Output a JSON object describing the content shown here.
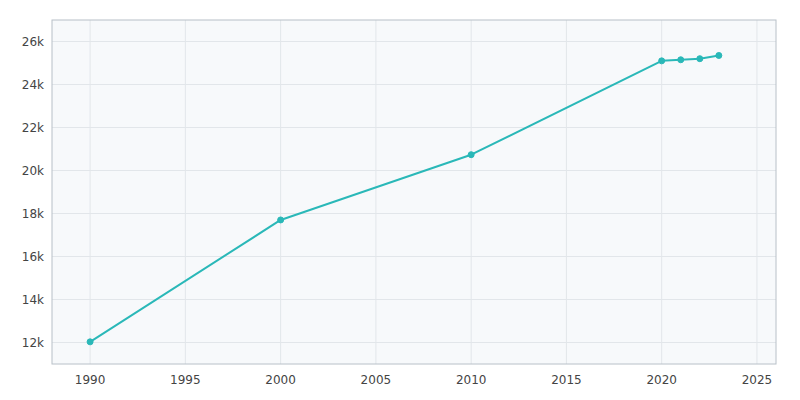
{
  "chart_data": {
    "type": "line",
    "x": [
      1990,
      2000,
      2010,
      2020,
      2021,
      2022,
      2023
    ],
    "values": [
      12031,
      17700,
      20735,
      25100,
      25150,
      25200,
      25350
    ],
    "color": "#2ab8b8",
    "marker": "circle",
    "xlim": [
      1988,
      2026
    ],
    "ylim": [
      11000,
      27000
    ],
    "xticks": [
      1990,
      1995,
      2000,
      2005,
      2010,
      2015,
      2020,
      2025
    ],
    "yticks": [
      {
        "value": 12000,
        "label": "12k"
      },
      {
        "value": 14000,
        "label": "14k"
      },
      {
        "value": 16000,
        "label": "16k"
      },
      {
        "value": 18000,
        "label": "18k"
      },
      {
        "value": 20000,
        "label": "20k"
      },
      {
        "value": 22000,
        "label": "22k"
      },
      {
        "value": 24000,
        "label": "24k"
      },
      {
        "value": 26000,
        "label": "26k"
      }
    ],
    "grid": true
  }
}
